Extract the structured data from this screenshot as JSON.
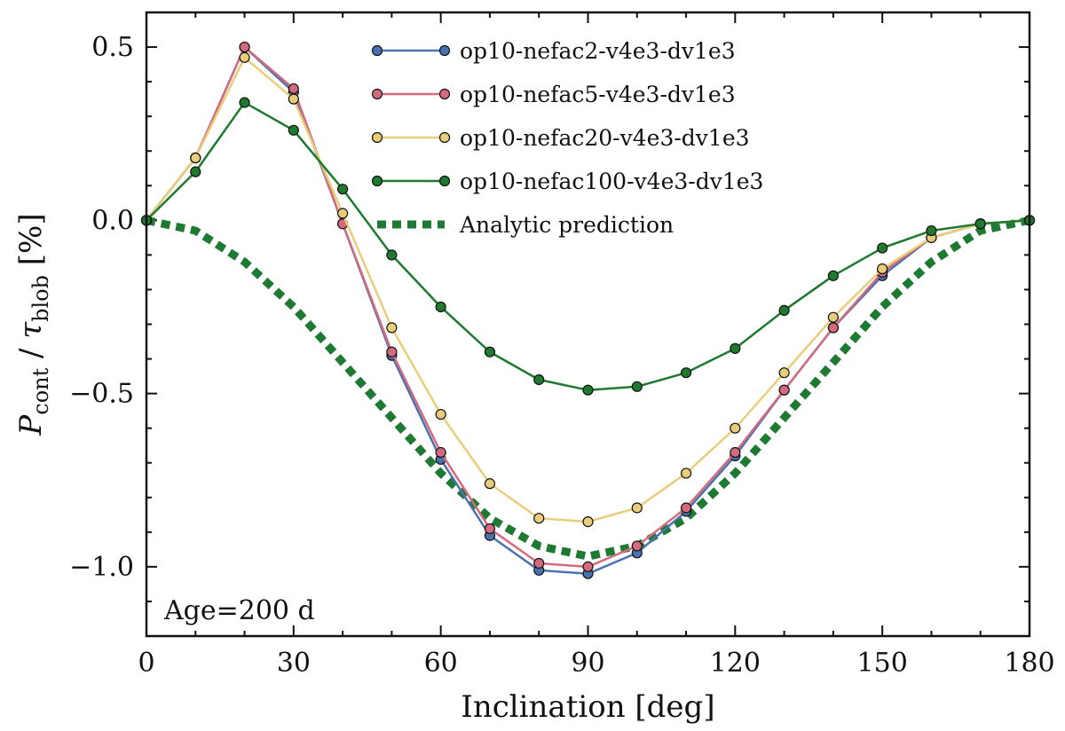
{
  "chart_data": {
    "type": "line",
    "xlabel": "Inclination [deg]",
    "ylabel": {
      "main": "P",
      "main_sub": "cont",
      "separator": " / ",
      "tau": "τ",
      "tau_sub": "blob",
      "unit": " [%]"
    },
    "xlim": [
      0,
      180
    ],
    "ylim": [
      -1.2,
      0.6
    ],
    "xticks": [
      0,
      30,
      60,
      90,
      120,
      150,
      180
    ],
    "xtick_labels": [
      "0",
      "30",
      "60",
      "90",
      "120",
      "150",
      "180"
    ],
    "yticks": [
      0.5,
      0.0,
      -0.5,
      -1.0
    ],
    "ytick_labels": [
      "0.5",
      "0.0",
      "−0.5",
      "−1.0"
    ],
    "x": [
      0,
      10,
      20,
      30,
      40,
      50,
      60,
      70,
      80,
      90,
      100,
      110,
      120,
      130,
      140,
      150,
      160,
      170,
      180
    ],
    "legend_position": "top-right",
    "annotation": "Age=200 d",
    "series": [
      {
        "name": "op10-nefac2-v4e3-dv1e3",
        "color": "#4a72b0",
        "marker_fill": "#4a72b0",
        "style": "line-marker",
        "values": [
          0.0,
          0.18,
          0.5,
          0.37,
          -0.01,
          -0.39,
          -0.69,
          -0.91,
          -1.01,
          -1.02,
          -0.96,
          -0.84,
          -0.68,
          -0.49,
          -0.31,
          -0.16,
          -0.05,
          -0.01,
          0.0
        ]
      },
      {
        "name": "op10-nefac5-v4e3-dv1e3",
        "color": "#d46a7e",
        "marker_fill": "#d46a7e",
        "style": "line-marker",
        "values": [
          0.0,
          0.18,
          0.5,
          0.38,
          -0.01,
          -0.38,
          -0.67,
          -0.89,
          -0.99,
          -1.0,
          -0.94,
          -0.83,
          -0.67,
          -0.49,
          -0.31,
          -0.15,
          -0.05,
          -0.01,
          0.0
        ]
      },
      {
        "name": "op10-nefac20-v4e3-dv1e3",
        "color": "#e8ce7a",
        "marker_fill": "#e8ce7a",
        "style": "line-marker",
        "values": [
          0.0,
          0.18,
          0.47,
          0.35,
          0.02,
          -0.31,
          -0.56,
          -0.76,
          -0.86,
          -0.87,
          -0.83,
          -0.73,
          -0.6,
          -0.44,
          -0.28,
          -0.14,
          -0.05,
          -0.01,
          0.0
        ]
      },
      {
        "name": "op10-nefac100-v4e3-dv1e3",
        "color": "#1f7a2f",
        "marker_fill": "#1f7a2f",
        "style": "line-marker",
        "values": [
          0.0,
          0.14,
          0.34,
          0.26,
          0.09,
          -0.1,
          -0.25,
          -0.38,
          -0.46,
          -0.49,
          -0.48,
          -0.44,
          -0.37,
          -0.26,
          -0.16,
          -0.08,
          -0.03,
          -0.01,
          0.0
        ]
      },
      {
        "name": "Analytic prediction",
        "color": "#1e7a33",
        "style": "dotted",
        "values": [
          0.0,
          -0.03,
          -0.12,
          -0.25,
          -0.41,
          -0.57,
          -0.73,
          -0.86,
          -0.94,
          -0.97,
          -0.94,
          -0.86,
          -0.73,
          -0.57,
          -0.41,
          -0.25,
          -0.12,
          -0.03,
          0.0
        ]
      }
    ]
  }
}
